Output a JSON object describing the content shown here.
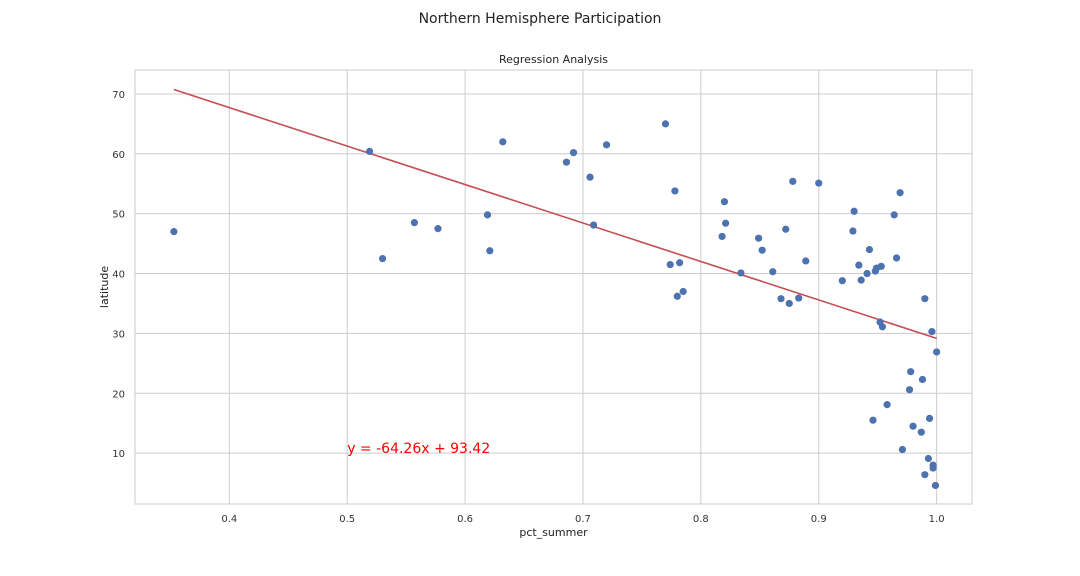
{
  "figure": {
    "suptitle": "Northern Hemisphere Participation"
  },
  "chart_data": {
    "type": "scatter",
    "title": "Regression Analysis",
    "xlabel": "pct_summer",
    "ylabel": "latitude",
    "xlim": [
      0.32,
      1.03
    ],
    "ylim": [
      1.5,
      74
    ],
    "xticks": [
      0.4,
      0.5,
      0.6,
      0.7,
      0.8,
      0.9,
      1.0
    ],
    "xtick_labels": [
      "0.4",
      "0.5",
      "0.6",
      "0.7",
      "0.8",
      "0.9",
      "1.0"
    ],
    "yticks": [
      10,
      20,
      30,
      40,
      50,
      60,
      70
    ],
    "ytick_labels": [
      "10",
      "20",
      "30",
      "40",
      "50",
      "60",
      "70"
    ],
    "grid": true,
    "point_color": "#4c72b0",
    "points": [
      [
        0.353,
        47.0
      ],
      [
        0.519,
        60.4
      ],
      [
        0.53,
        42.5
      ],
      [
        0.557,
        48.5
      ],
      [
        0.577,
        47.5
      ],
      [
        0.619,
        49.8
      ],
      [
        0.621,
        43.8
      ],
      [
        0.632,
        62.0
      ],
      [
        0.686,
        58.6
      ],
      [
        0.692,
        60.2
      ],
      [
        0.706,
        56.1
      ],
      [
        0.709,
        48.1
      ],
      [
        0.72,
        61.5
      ],
      [
        0.77,
        65.0
      ],
      [
        0.774,
        41.5
      ],
      [
        0.778,
        53.8
      ],
      [
        0.78,
        36.2
      ],
      [
        0.782,
        41.8
      ],
      [
        0.785,
        37.0
      ],
      [
        0.818,
        46.2
      ],
      [
        0.82,
        52.0
      ],
      [
        0.821,
        48.4
      ],
      [
        0.834,
        40.1
      ],
      [
        0.849,
        45.9
      ],
      [
        0.852,
        43.9
      ],
      [
        0.861,
        40.3
      ],
      [
        0.868,
        35.8
      ],
      [
        0.872,
        47.4
      ],
      [
        0.875,
        35.0
      ],
      [
        0.878,
        55.4
      ],
      [
        0.883,
        35.9
      ],
      [
        0.889,
        42.1
      ],
      [
        0.9,
        55.1
      ],
      [
        0.92,
        38.8
      ],
      [
        0.929,
        47.1
      ],
      [
        0.93,
        50.4
      ],
      [
        0.934,
        41.4
      ],
      [
        0.936,
        38.9
      ],
      [
        0.941,
        40.0
      ],
      [
        0.943,
        44.0
      ],
      [
        0.946,
        15.5
      ],
      [
        0.948,
        40.4
      ],
      [
        0.949,
        40.9
      ],
      [
        0.952,
        31.9
      ],
      [
        0.953,
        41.2
      ],
      [
        0.954,
        31.1
      ],
      [
        0.958,
        18.1
      ],
      [
        0.964,
        49.8
      ],
      [
        0.966,
        42.6
      ],
      [
        0.969,
        53.5
      ],
      [
        0.971,
        10.6
      ],
      [
        0.977,
        20.6
      ],
      [
        0.978,
        23.6
      ],
      [
        0.98,
        14.5
      ],
      [
        0.987,
        13.5
      ],
      [
        0.988,
        22.3
      ],
      [
        0.99,
        35.8
      ],
      [
        0.99,
        6.4
      ],
      [
        0.993,
        9.1
      ],
      [
        0.994,
        15.8
      ],
      [
        0.996,
        30.3
      ],
      [
        0.997,
        8.0
      ],
      [
        0.997,
        7.5
      ],
      [
        0.999,
        4.6
      ],
      [
        1.0,
        26.9
      ]
    ],
    "regression": {
      "slope": -64.26,
      "intercept": 93.42,
      "x_range": [
        0.353,
        1.0
      ],
      "color": "#c44e52",
      "equation": "y = -64.26x + 93.42",
      "equation_color": "#ff0000",
      "equation_pos": [
        0.5,
        10
      ]
    }
  }
}
